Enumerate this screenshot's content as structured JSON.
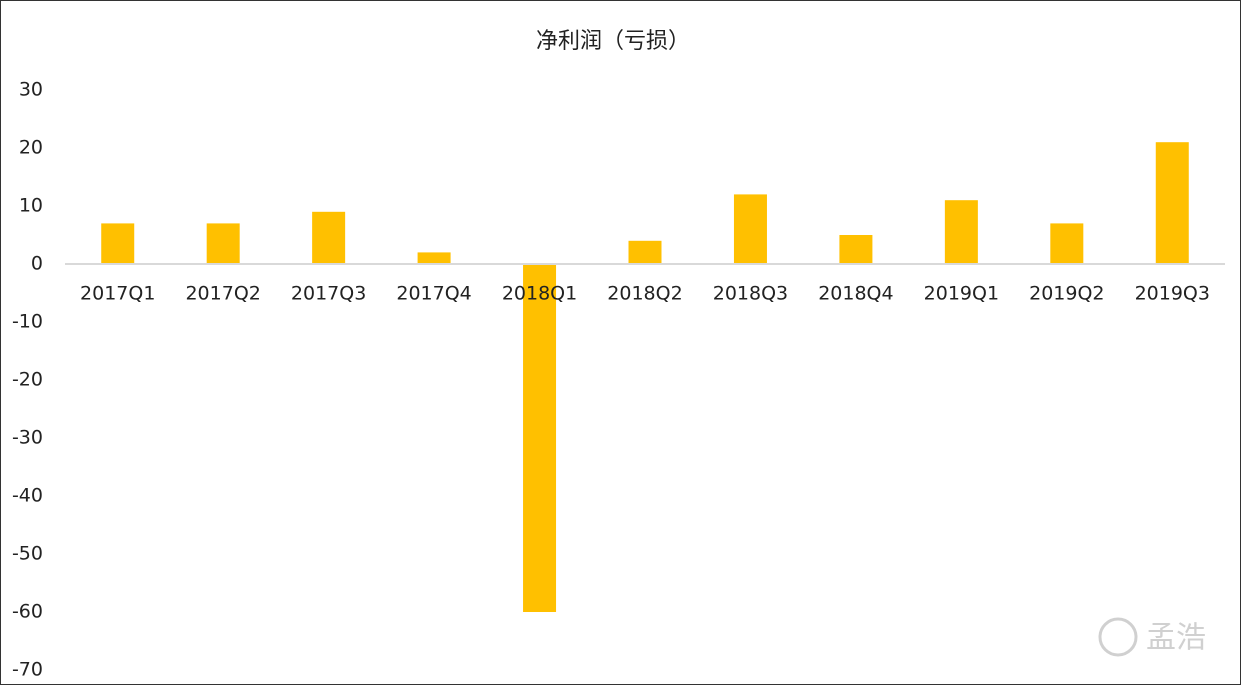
{
  "chart_data": {
    "type": "bar",
    "title": "净利润（亏损）",
    "categories": [
      "2017Q1",
      "2017Q2",
      "2017Q3",
      "2017Q4",
      "2018Q1",
      "2018Q2",
      "2018Q3",
      "2018Q4",
      "2019Q1",
      "2019Q2",
      "2019Q3"
    ],
    "values": [
      7,
      7,
      9,
      2,
      -60,
      4,
      12,
      5,
      11,
      7,
      21
    ],
    "color": "#ffc000",
    "ylim": [
      -70,
      30
    ],
    "yticks": [
      -70,
      -60,
      -50,
      -40,
      -30,
      -20,
      -10,
      0,
      10,
      20,
      30
    ],
    "grid": false
  },
  "watermark": "孟浩"
}
